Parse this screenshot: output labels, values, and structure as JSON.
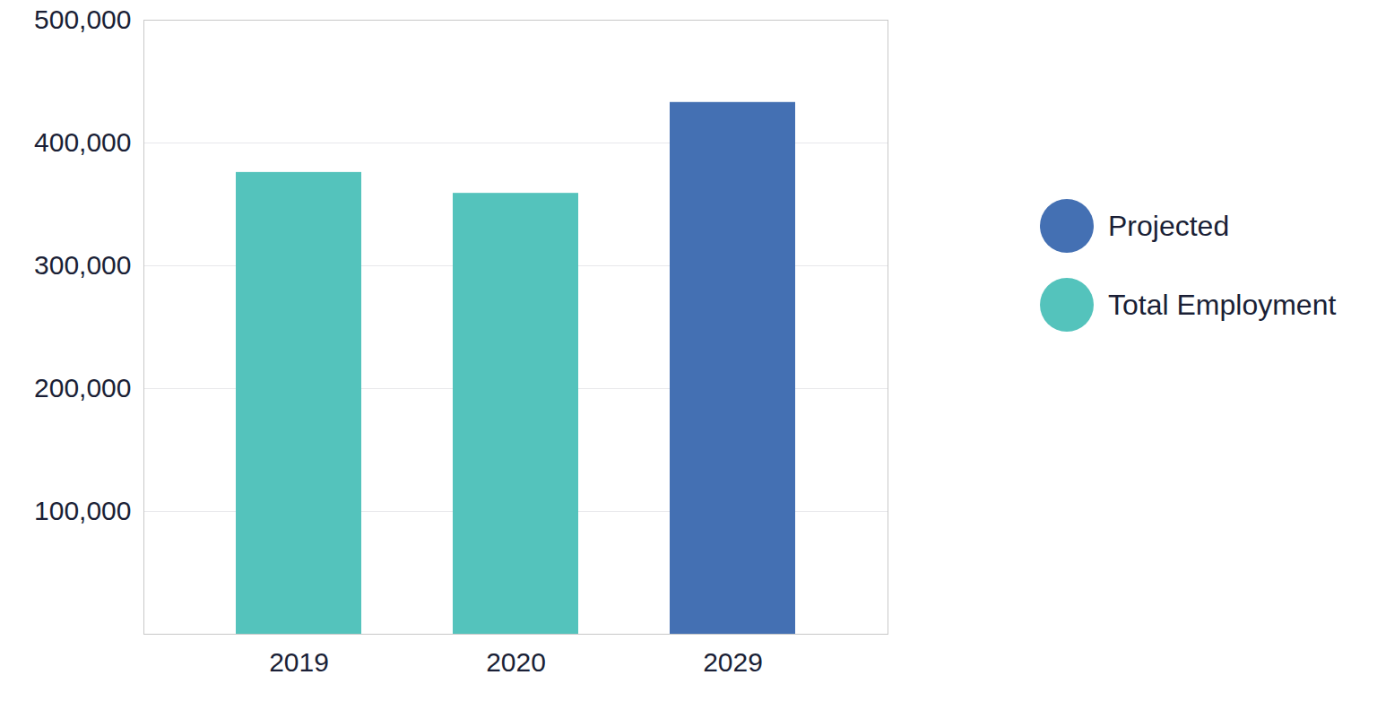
{
  "chart_data": {
    "type": "bar",
    "categories": [
      "2019",
      "2020",
      "2029"
    ],
    "series": [
      {
        "name": "Projected",
        "color": "#4470b3",
        "values": [
          null,
          null,
          433000
        ]
      },
      {
        "name": "Total Employment",
        "color": "#54c3bc",
        "values": [
          376000,
          359000,
          null
        ]
      }
    ],
    "ylim": [
      0,
      500000
    ],
    "yticks": [
      {
        "value": 100000,
        "label": "100,000"
      },
      {
        "value": 200000,
        "label": "200,000"
      },
      {
        "value": 300000,
        "label": "300,000"
      },
      {
        "value": 400000,
        "label": "400,000"
      },
      {
        "value": 500000,
        "label": "500,000"
      }
    ],
    "grid": true,
    "legend": "right"
  }
}
